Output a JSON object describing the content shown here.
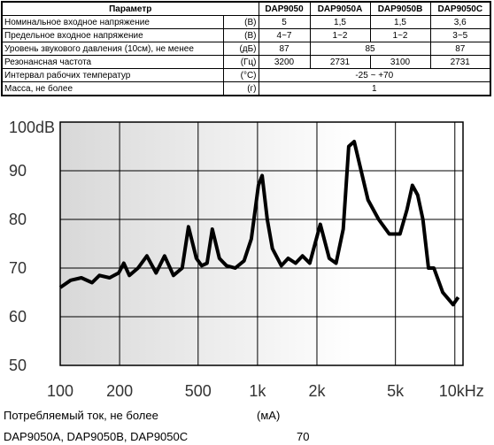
{
  "table": {
    "header": [
      "Параметр",
      "DAP9050",
      "DAP9050A",
      "DAP9050B",
      "DAP9050C"
    ],
    "rows": [
      [
        "Номинальное входное напряжение",
        "(В)",
        "5",
        "1,5",
        "1,5",
        "3,6"
      ],
      [
        "Предельное входное напряжение",
        "(В)",
        "4~7",
        "1~2",
        "1~2",
        "3~5"
      ],
      [
        "Уровень звукового давления (10см), не менее",
        "(дБ)",
        "87",
        "85",
        "87"
      ],
      [
        "Резонансная частота",
        "(Гц)",
        "3200",
        "2731",
        "3100",
        "2731"
      ],
      [
        "Интервал рабочих температур",
        "(°C)",
        "-25 ~ +70"
      ],
      [
        "Масса, не более",
        "(г)",
        "1"
      ]
    ]
  },
  "chart_data": {
    "type": "line",
    "log_x": true,
    "grid": true,
    "color": "#000000",
    "x": [
      100,
      113,
      128,
      145,
      158,
      178,
      198,
      210,
      224,
      248,
      275,
      306,
      338,
      375,
      415,
      447,
      490,
      521,
      555,
      590,
      641,
      696,
      771,
      855,
      930,
      1010,
      1055,
      1120,
      1190,
      1320,
      1430,
      1560,
      1690,
      1840,
      2080,
      2310,
      2500,
      2720,
      2900,
      3090,
      3350,
      3630,
      4110,
      4650,
      5270,
      5720,
      6090,
      6480,
      6890,
      7350,
      7830,
      8680,
      9800,
      10400
    ],
    "values": [
      66,
      67.5,
      68,
      67,
      68.5,
      68,
      69,
      71,
      68.5,
      70,
      72.5,
      69,
      72.5,
      68.5,
      70,
      78.5,
      72,
      70.5,
      71,
      78,
      72,
      70.5,
      70,
      71.5,
      76,
      87,
      89,
      80,
      74,
      70.5,
      72,
      71,
      72.5,
      71,
      79,
      72,
      71,
      78,
      95,
      96,
      90,
      84,
      80,
      77,
      77,
      82,
      87,
      85,
      80,
      70,
      70,
      65,
      62.5,
      64
    ],
    "xlim": [
      100,
      11000
    ],
    "xticks": [
      100,
      200,
      500,
      {
        "value": 1000,
        "label": "1k"
      },
      {
        "value": 2000,
        "label": "2k"
      },
      {
        "value": 5000,
        "label": "5k"
      },
      {
        "value": 10000,
        "label": "10kHz"
      }
    ],
    "ylim": [
      50,
      100
    ],
    "yticks": [
      50,
      60,
      70,
      80,
      90,
      {
        "value": 100,
        "label": "100dB"
      }
    ]
  },
  "footer": {
    "param": "Потребляемый ток, не более",
    "unit": "(мА)",
    "models": "DAP9050A, DAP9050B, DAP9050C",
    "value": "70"
  }
}
